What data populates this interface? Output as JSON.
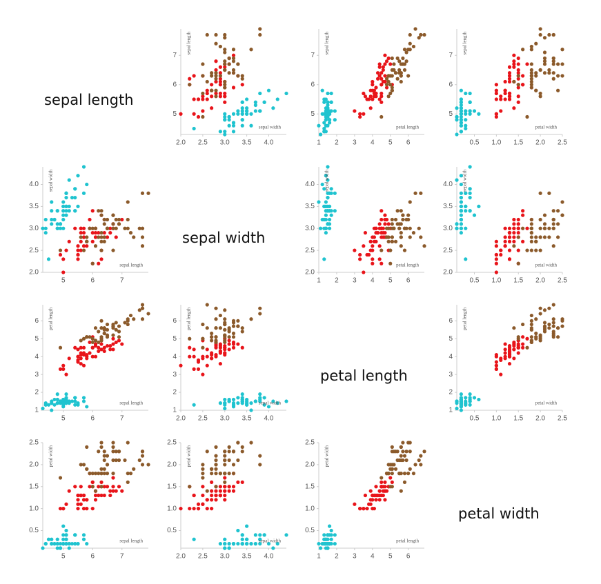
{
  "chart_data": {
    "type": "scatter-matrix",
    "variables": [
      {
        "name": "sepal length",
        "lim": [
          4.3,
          7.9
        ],
        "ticks": [
          5,
          6,
          7
        ]
      },
      {
        "name": "sepal width",
        "lim": [
          2.0,
          4.4
        ],
        "ticks": [
          {
            "value": 2,
            "label": "2.0"
          },
          2.5,
          {
            "value": 3,
            "label": "3.0"
          },
          3.5,
          {
            "value": 4,
            "label": "4.0"
          }
        ]
      },
      {
        "name": "petal length",
        "lim": [
          1.0,
          6.9
        ],
        "ticks": [
          1,
          2,
          3,
          4,
          5,
          6
        ]
      },
      {
        "name": "petal width",
        "lim": [
          0.1,
          2.5
        ],
        "ticks": [
          0.5,
          {
            "value": 1,
            "label": "1.0"
          },
          1.5,
          {
            "value": 2,
            "label": "2.0"
          },
          2.5
        ]
      }
    ],
    "series": [
      {
        "color": "#1fc3cf",
        "columns": [
          [
            5.1,
            4.9,
            4.7,
            4.6,
            5.0,
            5.4,
            4.6,
            5.0,
            4.4,
            4.9,
            5.4,
            4.8,
            4.8,
            4.3,
            5.8,
            5.7,
            5.4,
            5.1,
            5.7,
            5.1,
            5.4,
            5.1,
            4.6,
            5.1,
            4.8,
            5.0,
            5.0,
            5.2,
            5.2,
            4.7,
            4.8,
            5.4,
            5.2,
            5.5,
            4.9,
            5.0,
            5.5,
            4.9,
            4.4,
            5.1,
            5.0,
            4.5,
            4.4,
            5.0,
            5.1,
            4.8,
            5.1,
            4.6,
            5.3,
            5.0
          ],
          [
            3.5,
            3.0,
            3.2,
            3.1,
            3.6,
            3.9,
            3.4,
            3.4,
            2.9,
            3.1,
            3.7,
            3.4,
            3.0,
            3.0,
            4.0,
            4.4,
            3.9,
            3.5,
            3.8,
            3.8,
            3.4,
            3.7,
            3.6,
            3.3,
            3.4,
            3.0,
            3.4,
            3.5,
            3.4,
            3.2,
            3.1,
            3.4,
            4.1,
            4.2,
            3.1,
            3.2,
            3.5,
            3.1,
            3.0,
            3.4,
            3.5,
            2.3,
            3.2,
            3.5,
            3.8,
            3.0,
            3.8,
            3.2,
            3.7,
            3.3
          ],
          [
            1.4,
            1.4,
            1.3,
            1.5,
            1.4,
            1.7,
            1.4,
            1.5,
            1.4,
            1.5,
            1.5,
            1.6,
            1.4,
            1.1,
            1.2,
            1.5,
            1.3,
            1.4,
            1.7,
            1.5,
            1.7,
            1.5,
            1.0,
            1.7,
            1.9,
            1.6,
            1.6,
            1.5,
            1.4,
            1.6,
            1.6,
            1.5,
            1.5,
            1.4,
            1.5,
            1.2,
            1.3,
            1.5,
            1.3,
            1.5,
            1.3,
            1.3,
            1.3,
            1.6,
            1.9,
            1.4,
            1.6,
            1.4,
            1.5,
            1.4
          ],
          [
            0.2,
            0.2,
            0.2,
            0.2,
            0.2,
            0.4,
            0.3,
            0.2,
            0.2,
            0.1,
            0.2,
            0.2,
            0.1,
            0.1,
            0.2,
            0.4,
            0.4,
            0.3,
            0.3,
            0.3,
            0.2,
            0.4,
            0.2,
            0.5,
            0.2,
            0.2,
            0.4,
            0.2,
            0.2,
            0.2,
            0.2,
            0.4,
            0.1,
            0.2,
            0.1,
            0.2,
            0.2,
            0.1,
            0.2,
            0.2,
            0.3,
            0.3,
            0.2,
            0.6,
            0.4,
            0.3,
            0.2,
            0.2,
            0.2,
            0.2
          ]
        ]
      },
      {
        "color": "#e8141a",
        "columns": [
          [
            7.0,
            6.4,
            6.9,
            5.5,
            6.5,
            5.7,
            6.3,
            4.9,
            6.6,
            5.2,
            5.0,
            5.9,
            6.0,
            6.1,
            5.6,
            6.7,
            5.6,
            5.8,
            6.2,
            5.6,
            5.9,
            6.1,
            6.3,
            6.1,
            6.4,
            6.6,
            6.8,
            6.7,
            6.0,
            5.7,
            5.5,
            5.5,
            5.8,
            6.0,
            5.4,
            6.0,
            6.7,
            6.3,
            5.6,
            5.5,
            5.5,
            6.1,
            5.8,
            5.0,
            5.6,
            5.7,
            5.7,
            6.2,
            5.1,
            5.7
          ],
          [
            3.2,
            3.2,
            3.1,
            2.3,
            2.8,
            2.8,
            3.3,
            2.4,
            2.9,
            2.7,
            2.0,
            3.0,
            2.2,
            2.9,
            2.9,
            3.1,
            3.0,
            2.7,
            2.2,
            2.5,
            3.2,
            2.8,
            2.5,
            2.8,
            2.9,
            3.0,
            2.8,
            3.0,
            2.9,
            2.6,
            2.4,
            2.4,
            2.7,
            2.7,
            3.0,
            3.4,
            3.1,
            2.3,
            3.0,
            2.5,
            2.6,
            3.0,
            2.6,
            2.3,
            2.7,
            3.0,
            2.9,
            2.9,
            2.5,
            2.8
          ],
          [
            4.7,
            4.5,
            4.9,
            4.0,
            4.6,
            4.5,
            4.7,
            3.3,
            4.6,
            3.9,
            3.5,
            4.2,
            4.0,
            4.7,
            3.6,
            4.4,
            4.5,
            4.1,
            4.5,
            3.9,
            4.8,
            4.0,
            4.9,
            4.7,
            4.3,
            4.4,
            4.8,
            5.0,
            4.5,
            3.5,
            3.8,
            3.7,
            3.9,
            5.1,
            4.5,
            4.5,
            4.7,
            4.4,
            4.1,
            4.0,
            4.4,
            4.6,
            4.0,
            3.3,
            4.2,
            4.2,
            4.2,
            4.3,
            3.0,
            4.1
          ],
          [
            1.4,
            1.5,
            1.5,
            1.3,
            1.5,
            1.3,
            1.6,
            1.0,
            1.3,
            1.4,
            1.0,
            1.5,
            1.0,
            1.4,
            1.3,
            1.4,
            1.5,
            1.0,
            1.5,
            1.1,
            1.8,
            1.3,
            1.5,
            1.2,
            1.3,
            1.4,
            1.4,
            1.7,
            1.5,
            1.0,
            1.1,
            1.0,
            1.2,
            1.6,
            1.5,
            1.6,
            1.5,
            1.3,
            1.3,
            1.3,
            1.2,
            1.4,
            1.2,
            1.0,
            1.3,
            1.2,
            1.3,
            1.3,
            1.1,
            1.3
          ]
        ]
      },
      {
        "color": "#8b5a2b",
        "columns": [
          [
            6.3,
            5.8,
            7.1,
            6.3,
            6.5,
            7.6,
            4.9,
            7.3,
            6.7,
            7.2,
            6.5,
            6.4,
            6.8,
            5.7,
            5.8,
            6.4,
            6.5,
            7.7,
            7.7,
            6.0,
            6.9,
            5.6,
            7.7,
            6.3,
            6.7,
            7.2,
            6.2,
            6.1,
            6.4,
            7.2,
            7.4,
            7.9,
            6.4,
            6.3,
            6.1,
            7.7,
            6.3,
            6.4,
            6.0,
            6.9,
            6.7,
            6.9,
            5.8,
            6.8,
            6.7,
            6.7,
            6.3,
            6.5,
            6.2,
            5.9
          ],
          [
            3.3,
            2.7,
            3.0,
            2.9,
            3.0,
            3.0,
            2.5,
            2.9,
            2.5,
            3.6,
            3.2,
            2.7,
            3.0,
            2.5,
            2.8,
            3.2,
            3.0,
            3.8,
            2.6,
            2.2,
            3.2,
            2.8,
            2.8,
            2.7,
            3.3,
            3.2,
            2.8,
            3.0,
            2.8,
            3.0,
            2.8,
            3.8,
            2.8,
            2.8,
            2.6,
            3.0,
            3.4,
            3.1,
            3.0,
            3.1,
            3.1,
            3.1,
            2.7,
            3.2,
            3.3,
            3.0,
            2.5,
            3.0,
            3.4,
            3.0
          ],
          [
            6.0,
            5.1,
            5.9,
            5.6,
            5.8,
            6.6,
            4.5,
            6.3,
            5.8,
            6.1,
            5.1,
            5.3,
            5.5,
            5.0,
            5.1,
            5.3,
            5.5,
            6.7,
            6.9,
            5.0,
            5.7,
            4.9,
            6.7,
            4.9,
            5.7,
            6.0,
            4.8,
            4.9,
            5.6,
            5.8,
            6.1,
            6.4,
            5.6,
            5.1,
            5.6,
            6.1,
            5.6,
            5.5,
            4.8,
            5.4,
            5.6,
            5.1,
            5.1,
            5.9,
            5.7,
            5.2,
            5.0,
            5.2,
            5.4,
            5.1
          ],
          [
            2.5,
            1.9,
            2.1,
            1.8,
            2.2,
            2.1,
            1.7,
            1.8,
            1.8,
            2.5,
            2.0,
            1.9,
            2.1,
            2.0,
            2.4,
            2.3,
            1.8,
            2.2,
            2.3,
            1.5,
            2.3,
            2.0,
            2.0,
            1.8,
            2.1,
            1.8,
            1.8,
            1.8,
            2.1,
            1.6,
            1.9,
            2.0,
            2.2,
            1.5,
            1.4,
            2.3,
            2.4,
            1.8,
            1.8,
            2.1,
            2.4,
            2.3,
            1.9,
            2.3,
            2.5,
            2.3,
            1.9,
            2.0,
            2.3,
            1.8
          ]
        ]
      }
    ]
  }
}
